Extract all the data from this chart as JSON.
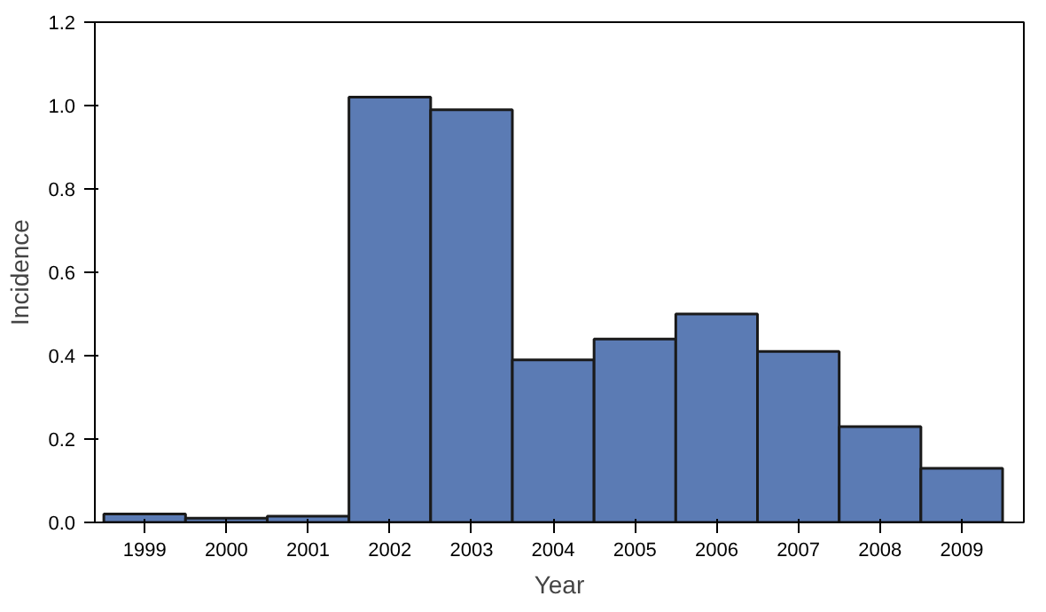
{
  "chart_data": {
    "type": "bar",
    "xlabel": "Year",
    "ylabel": "Incidence",
    "categories": [
      "1999",
      "2000",
      "2001",
      "2002",
      "2003",
      "2004",
      "2005",
      "2006",
      "2007",
      "2008",
      "2009"
    ],
    "values": [
      0.02,
      0.01,
      0.015,
      1.02,
      0.99,
      0.39,
      0.44,
      0.5,
      0.41,
      0.23,
      0.13
    ],
    "color": "#5b7bb4",
    "ylim": [
      0,
      1.2
    ],
    "yticks": [
      {
        "value": 0,
        "label": "0.0"
      },
      {
        "value": 0.2,
        "label": "0.2"
      },
      {
        "value": 0.4,
        "label": "0.4"
      },
      {
        "value": 0.6,
        "label": "0.6"
      },
      {
        "value": 0.8,
        "label": "0.8"
      },
      {
        "value": 1.0,
        "label": "1.0"
      },
      {
        "value": 1.2,
        "label": "1.2"
      }
    ],
    "grid": false
  }
}
